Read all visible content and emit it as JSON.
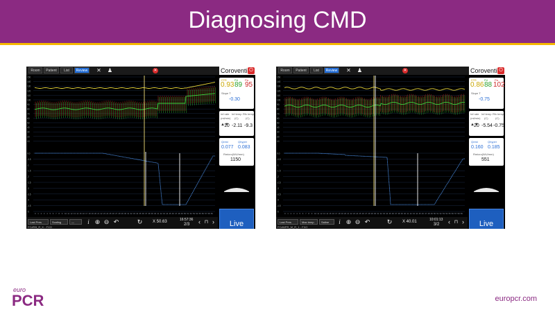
{
  "slide": {
    "title": "Diagnosing CMD",
    "logo_small": "euro",
    "logo_big": "PCR",
    "url": "europcr.com"
  },
  "colors": {
    "brand_purple": "#8b2a82",
    "accent_yellow": "#f5b800",
    "live_blue": "#1e5fbf",
    "trace_yellow": "#e6d43a",
    "trace_green": "#3ccf3c",
    "trace_red": "#e03a2a",
    "trace_blue": "#4b8fe8"
  },
  "screens": [
    {
      "tabs": [
        "Room",
        "Patient",
        "List",
        "Review"
      ],
      "active_tab": "Review",
      "brand": "Coroventis",
      "ffr": {
        "label_ffr": "FFR",
        "label_pd": "Pd",
        "label_pa": "Pa",
        "ffr": "0.93",
        "pd": "89",
        "pa": "95"
      },
      "slope": {
        "label": "Slope T",
        "value": "-0.30"
      },
      "temps": {
        "labels": [
          "Inf rate",
          "Inf temp",
          "Rfx temp"
        ],
        "units": [
          "(ml/min)",
          "(C)",
          "(C)"
        ],
        "values": [
          "10",
          "-2.11",
          "-9.3"
        ]
      },
      "transit": {
        "label_1": "Qrest",
        "label_2": "Qhyper",
        "value_1": "0.077",
        "value_2": "0.083",
        "res_label": "Rmicro(WU/mm)",
        "res_value": "1150"
      },
      "live": "Live",
      "bottom": {
        "drop1": "Last Pres",
        "drop2": "Scaling",
        "drop3": "—",
        "x_readout": "X 50.63",
        "time": "16:57:36",
        "page": "2/3",
        "file": "FC#RB_R_K - FXO"
      },
      "y_ticks_top": [
        "150",
        "140",
        "130",
        "120",
        "110",
        "100",
        "90",
        "80",
        "70",
        "60",
        "50",
        "40",
        "30",
        "20",
        "10"
      ],
      "y_ticks_bottom": [
        "0.0",
        "-0.5",
        "-1",
        "-1.5",
        "-2",
        "-2.5",
        "-3",
        "-3.5",
        "-4",
        "-4.5",
        "-5"
      ]
    },
    {
      "tabs": [
        "Room",
        "Patient",
        "List",
        "Review"
      ],
      "active_tab": "Review",
      "brand": "Coroventis",
      "ffr": {
        "label_ffr": "FFR",
        "label_pd": "Pd",
        "label_pa": "Pa",
        "ffr": "0.86",
        "pd": "88",
        "pa": "102"
      },
      "slope": {
        "label": "Slope T",
        "value": "-0.75"
      },
      "temps": {
        "labels": [
          "Inf rate",
          "Inf temp",
          "Rfx temp"
        ],
        "units": [
          "(ml/min)",
          "(C)",
          "(C)"
        ],
        "values": [
          "20",
          "-5.54",
          "-0.75"
        ]
      },
      "transit": {
        "label_1": "Qrest",
        "label_2": "Qhyper",
        "value_1": "0.160",
        "value_2": "0.185",
        "res_label": "Rmicro(WU/mm)",
        "res_value": "551"
      },
      "live": "Live",
      "bottom": {
        "drop1": "Last Pres",
        "drop2": "Max temp",
        "drop3": "Saline",
        "x_readout": "X 40.01",
        "time": "10:01:13",
        "page": "3/2",
        "file": "FC#MPR_M_R_1 - FXO"
      },
      "y_ticks_top": [
        "150",
        "140",
        "130",
        "120",
        "110",
        "100",
        "90",
        "80",
        "70",
        "60",
        "50",
        "40",
        "30",
        "20",
        "10"
      ],
      "y_ticks_bottom": [
        "0.0",
        "-0.5",
        "-1",
        "-1.5",
        "-2",
        "-2.5",
        "-3",
        "-3.5",
        "-4",
        "-4.5",
        "-5"
      ]
    }
  ]
}
